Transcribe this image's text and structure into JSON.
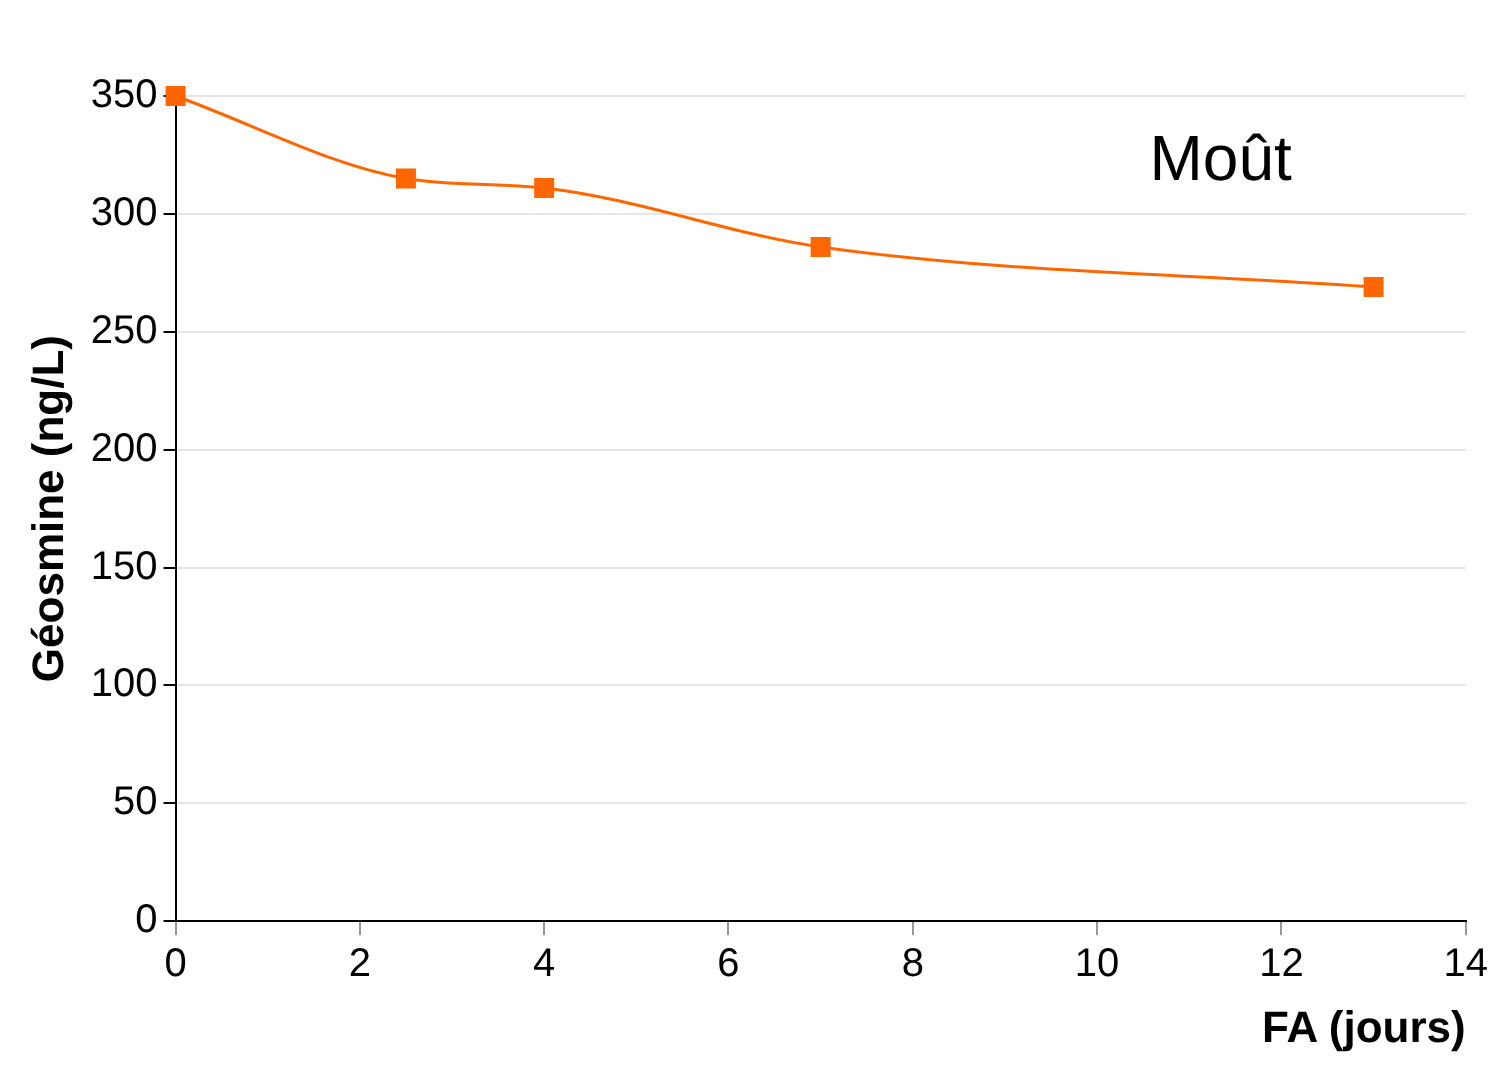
{
  "chart_data": {
    "type": "line",
    "xlabel": "FA (jours)",
    "ylabel": "Géosmine (ng/L)",
    "annotations": [
      "Moût"
    ],
    "x": [
      0,
      2.5,
      4,
      7,
      13
    ],
    "series": [
      {
        "color": "#ff6600",
        "values": [
          350,
          315,
          311,
          286,
          269
        ]
      }
    ],
    "xlim": [
      0,
      14
    ],
    "xticks": [
      0,
      2,
      4,
      6,
      8,
      10,
      12,
      14
    ],
    "ylim": [
      0,
      350
    ],
    "yticks": [
      0,
      50,
      100,
      150,
      200,
      250,
      300,
      350
    ],
    "grid": "y",
    "legend": false,
    "marker": "square",
    "line_style": "solid"
  }
}
